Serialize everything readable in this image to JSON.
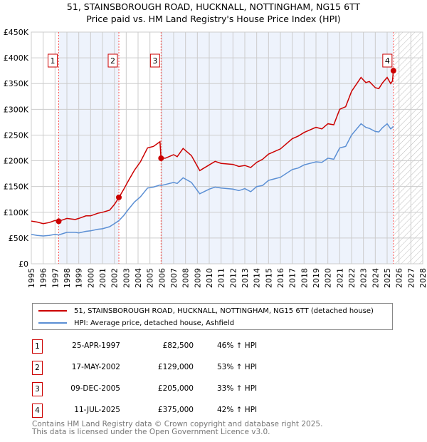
{
  "title": "51, STAINSBOROUGH ROAD, HUCKNALL, NOTTINGHAM, NG15 6TT",
  "subtitle": "Price paid vs. HM Land Registry's House Price Index (HPI)",
  "chart_data": {
    "type": "line",
    "title": "51, STAINSBOROUGH ROAD, HUCKNALL, NOTTINGHAM, NG15 6TT",
    "subtitle": "Price paid vs. HM Land Registry's House Price Index (HPI)",
    "xlim": [
      1995,
      2028
    ],
    "ylim": [
      0,
      450000
    ],
    "x_ticks": [
      "1995",
      "1996",
      "1997",
      "1998",
      "1999",
      "2000",
      "2001",
      "2002",
      "2003",
      "2004",
      "2005",
      "2006",
      "2007",
      "2008",
      "2009",
      "2010",
      "2011",
      "2012",
      "2013",
      "2014",
      "2015",
      "2016",
      "2017",
      "2018",
      "2019",
      "2020",
      "2021",
      "2022",
      "2023",
      "2024",
      "2025",
      "2026",
      "2027",
      "2028"
    ],
    "y_ticks": [
      {
        "v": 0,
        "label": "£0"
      },
      {
        "v": 50000,
        "label": "£50K"
      },
      {
        "v": 100000,
        "label": "£100K"
      },
      {
        "v": 150000,
        "label": "£150K"
      },
      {
        "v": 200000,
        "label": "£200K"
      },
      {
        "v": 250000,
        "label": "£250K"
      },
      {
        "v": 300000,
        "label": "£300K"
      },
      {
        "v": 350000,
        "label": "£350K"
      },
      {
        "v": 400000,
        "label": "£400K"
      },
      {
        "v": 450000,
        "label": "£450K"
      }
    ],
    "grid": true,
    "forecast_from": 2025.6,
    "series": [
      {
        "name": "51, STAINSBOROUGH ROAD, HUCKNALL, NOTTINGHAM, NG15 6TT (detached house)",
        "color": "#cc0000",
        "x": [
          1995,
          1995.5,
          1996,
          1996.5,
          1997,
          1997.3,
          1998,
          1998.7,
          1999,
          1999.6,
          2000,
          2000.6,
          2001,
          2001.6,
          2002,
          2002.4,
          2002.8,
          2003.2,
          2003.7,
          2004.2,
          2004.8,
          2005.3,
          2005.85,
          2005.93,
          2006.3,
          2007,
          2007.3,
          2007.8,
          2008.5,
          2009.2,
          2010,
          2010.5,
          2011,
          2012,
          2012.5,
          2013,
          2013.5,
          2014,
          2014.5,
          2015,
          2016,
          2017,
          2017.5,
          2018,
          2019,
          2019.5,
          2020,
          2020.5,
          2021,
          2021.5,
          2022,
          2022.8,
          2023.2,
          2023.5,
          2024,
          2024.3,
          2024.6,
          2025,
          2025.3,
          2025.45,
          2025.52
        ],
        "y": [
          83000,
          81000,
          78000,
          80000,
          84000,
          82500,
          88000,
          86000,
          88000,
          93000,
          93000,
          98000,
          100000,
          104000,
          115000,
          129000,
          145000,
          162000,
          182000,
          198000,
          225000,
          228000,
          237000,
          205000,
          205000,
          212000,
          208000,
          224000,
          210000,
          181000,
          192000,
          199000,
          195000,
          193000,
          189000,
          191000,
          187000,
          197000,
          203000,
          213000,
          223000,
          243000,
          248000,
          255000,
          265000,
          262000,
          272000,
          270000,
          300000,
          305000,
          335000,
          362000,
          352000,
          354000,
          342000,
          340000,
          351000,
          362000,
          350000,
          355000,
          375000
        ]
      },
      {
        "name": "HPI: Average price, detached house, Ashfield",
        "color": "#5b8fd4",
        "x": [
          1995,
          1995.5,
          1996,
          1996.5,
          1997,
          1997.3,
          1998,
          1998.7,
          1999,
          1999.6,
          2000,
          2000.6,
          2001,
          2001.6,
          2002,
          2002.4,
          2002.8,
          2003.2,
          2003.7,
          2004.2,
          2004.8,
          2005.3,
          2005.85,
          2005.93,
          2006.3,
          2007,
          2007.3,
          2007.8,
          2008.5,
          2009.2,
          2010,
          2010.5,
          2011,
          2012,
          2012.5,
          2013,
          2013.5,
          2014,
          2014.5,
          2015,
          2016,
          2017,
          2017.5,
          2018,
          2019,
          2019.5,
          2020,
          2020.5,
          2021,
          2021.5,
          2022,
          2022.8,
          2023.2,
          2023.5,
          2024,
          2024.3,
          2024.6,
          2025,
          2025.3,
          2025.45,
          2025.52
        ],
        "y": [
          57000,
          55000,
          54000,
          55000,
          57000,
          56000,
          61000,
          61000,
          60000,
          63000,
          64000,
          67000,
          68000,
          72000,
          78000,
          84000,
          94000,
          106000,
          120000,
          130000,
          147000,
          149000,
          153000,
          152000,
          154000,
          158000,
          156000,
          167000,
          158000,
          136000,
          145000,
          149000,
          147000,
          145000,
          142000,
          146000,
          140000,
          150000,
          152000,
          162000,
          168000,
          183000,
          186000,
          192000,
          198000,
          197000,
          205000,
          203000,
          225000,
          228000,
          250000,
          272000,
          265000,
          263000,
          257000,
          256000,
          264000,
          272000,
          262000,
          265000,
          267000
        ]
      }
    ],
    "sales": [
      {
        "n": "1",
        "x": 1997.31,
        "y": 82500,
        "date": "25-APR-1997",
        "price": "£82,500",
        "hpi": "46% ↑ HPI"
      },
      {
        "n": "2",
        "x": 2002.38,
        "y": 129000,
        "date": "17-MAY-2002",
        "price": "£129,000",
        "hpi": "53% ↑ HPI"
      },
      {
        "n": "3",
        "x": 2005.94,
        "y": 205000,
        "date": "09-DEC-2005",
        "price": "£205,000",
        "hpi": "33% ↑ HPI"
      },
      {
        "n": "4",
        "x": 2025.53,
        "y": 375000,
        "date": "11-JUL-2025",
        "price": "£375,000",
        "hpi": "42% ↑ HPI"
      }
    ]
  },
  "legend": {
    "property": "51, STAINSBOROUGH ROAD, HUCKNALL, NOTTINGHAM, NG15 6TT (detached house)",
    "hpi": "HPI: Average price, detached house, Ashfield"
  },
  "footer": {
    "line1": "Contains HM Land Registry data © Crown copyright and database right 2025.",
    "line2": "This data is licensed under the Open Government Licence v3.0."
  }
}
